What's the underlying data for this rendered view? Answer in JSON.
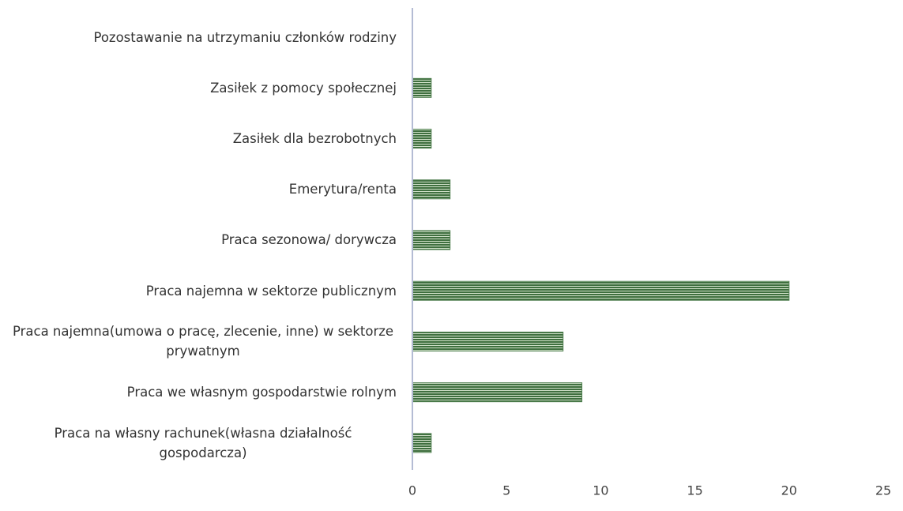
{
  "chart_data": {
    "type": "bar",
    "orientation": "horizontal",
    "categories": [
      "Pozostawanie na utrzymaniu członków rodziny",
      "Zasiłek z pomocy społecznej",
      "Zasiłek dla bezrobotnych",
      "Emerytura/renta",
      "Praca sezonowa/ dorywcza",
      "Praca najemna w sektorze publicznym",
      "Praca najemna(umowa o pracę, zlecenie, inne) w sektorze prywatnym",
      "Praca we własnym gospodarstwie rolnym",
      "Praca na własny rachunek(własna działalność gospodarcza)"
    ],
    "values": [
      0,
      1,
      1,
      2,
      2,
      20,
      8,
      9,
      1
    ],
    "color": "#4f7f4f",
    "xlim": [
      0,
      25
    ],
    "xticks": [
      0,
      5,
      10,
      15,
      20,
      25
    ],
    "grid": false
  }
}
